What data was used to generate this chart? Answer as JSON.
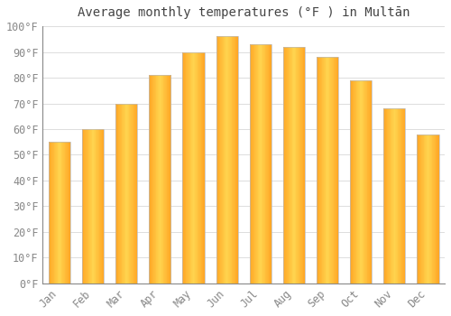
{
  "title": "Average monthly temperatures (°F ) in Multān",
  "months": [
    "Jan",
    "Feb",
    "Mar",
    "Apr",
    "May",
    "Jun",
    "Jul",
    "Aug",
    "Sep",
    "Oct",
    "Nov",
    "Dec"
  ],
  "values": [
    55,
    60,
    70,
    81,
    90,
    96,
    93,
    92,
    88,
    79,
    68,
    58
  ],
  "bar_color_center": "#FFD000",
  "bar_color_edge": "#FFA500",
  "bar_edge_color": "#AAAAAA",
  "background_color": "#FFFFFF",
  "grid_color": "#DDDDDD",
  "ylim": [
    0,
    100
  ],
  "ytick_step": 10,
  "title_fontsize": 10,
  "tick_fontsize": 8.5,
  "tick_color": "#888888"
}
